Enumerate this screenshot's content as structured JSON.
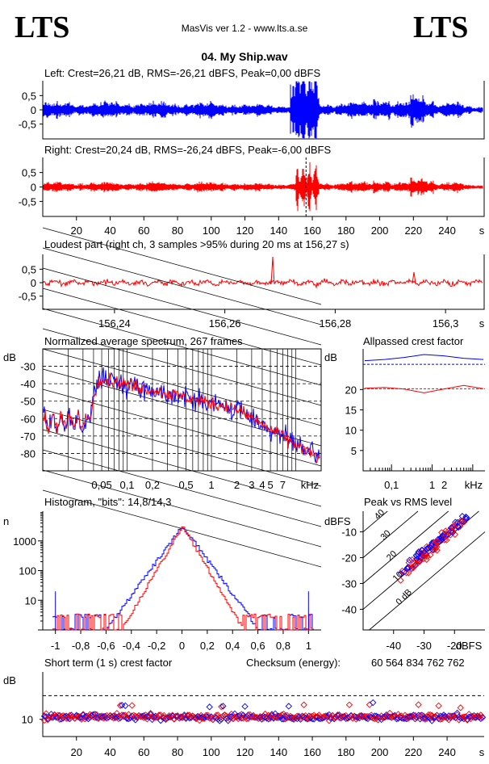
{
  "header": {
    "logo_left": "LTS",
    "logo_right": "LTS",
    "app_title": "MasVis ver 1.2 - www.lts.a.se",
    "file_name": "04. My Ship.wav"
  },
  "colors": {
    "left_channel": "#0000ff",
    "right_channel": "#ff0000",
    "axis": "#000000",
    "grid": "#000000"
  },
  "chart_data": [
    {
      "id": "left",
      "type": "line",
      "title": "Left: Crest=26,21 dB, RMS=-26,21 dBFS, Peak=0,00 dBFS",
      "y_tick_labels": [
        "0,5",
        "0",
        "-0,5"
      ],
      "x_range": [
        0,
        262
      ],
      "ylim": [
        -1,
        1
      ],
      "stats": {
        "crest_db": 26.21,
        "rms_dbfs": -26.21,
        "peak_dbfs": 0.0
      }
    },
    {
      "id": "right",
      "type": "line",
      "title": "Right: Crest=20,24 dB, RMS=-26,24 dBFS, Peak=-6,00 dBFS",
      "y_tick_labels": [
        "0,5",
        "0",
        "-0,5"
      ],
      "x_tick_labels": [
        "20",
        "40",
        "60",
        "80",
        "100",
        "120",
        "140",
        "160",
        "180",
        "200",
        "220",
        "240",
        "s"
      ],
      "x_ticks": [
        20,
        40,
        60,
        80,
        100,
        120,
        140,
        160,
        180,
        200,
        220,
        240
      ],
      "x_range": [
        0,
        262
      ],
      "ylim": [
        -1,
        1
      ],
      "marker_x": 156.27,
      "stats": {
        "crest_db": 20.24,
        "rms_dbfs": -26.24,
        "peak_dbfs": -6.0
      }
    },
    {
      "id": "loudest",
      "type": "line",
      "title": "Loudest part (right ch, 3 samples >95% during 20 ms at 156,27 s)",
      "y_tick_labels": [
        "0,5",
        "0",
        "-0,5"
      ],
      "x_tick_labels": [
        "156,24",
        "156,26",
        "156,28",
        "156,3",
        "s"
      ],
      "x_ticks": [
        156.24,
        156.26,
        156.28,
        156.3
      ],
      "x_range": [
        156.227,
        156.307
      ],
      "ylim": [
        -1,
        1
      ]
    },
    {
      "id": "spectrum",
      "type": "line",
      "title": "Normalized average spectrum, 267 frames",
      "ylabel": "dB",
      "y_tick_labels": [
        "-30",
        "-40",
        "-50",
        "-60",
        "-70",
        "-80"
      ],
      "y_ticks": [
        -30,
        -40,
        -50,
        -60,
        -70,
        -80
      ],
      "x_tick_labels": [
        "0,05",
        "0,1",
        "0,2",
        "0,5",
        "1",
        "2",
        "3",
        "4",
        "5",
        "7",
        "kHz"
      ],
      "x_ticks": [
        0.05,
        0.1,
        0.2,
        0.5,
        1,
        2,
        3,
        4,
        5,
        7
      ],
      "xlim_khz": [
        0.01,
        20
      ],
      "ylim": [
        -90,
        -20
      ],
      "x_scale": "log",
      "series": [
        {
          "channel": "left"
        },
        {
          "channel": "right"
        }
      ]
    },
    {
      "id": "allpassed",
      "type": "line",
      "title": "Allpassed crest factor",
      "ylabel": "dB",
      "y_tick_labels": [
        "20",
        "15",
        "10",
        "5"
      ],
      "y_ticks": [
        20,
        15,
        10,
        5
      ],
      "x_tick_labels": [
        "0,1",
        "1",
        "2",
        "kHz"
      ],
      "x_ticks": [
        0.1,
        1,
        2
      ],
      "x_scale": "log",
      "xlim_khz": [
        0.02,
        20
      ],
      "ylim": [
        0,
        30
      ],
      "series": [
        {
          "channel": "left",
          "reference": 26.2,
          "values": [
            27.1,
            27.4,
            27.9,
            28.6,
            28.3,
            27.7,
            27.4
          ]
        },
        {
          "channel": "right",
          "reference": 20.2,
          "values": [
            20.3,
            20.5,
            20.1,
            19.2,
            20.1,
            21.0,
            20.2
          ]
        }
      ]
    },
    {
      "id": "histogram",
      "type": "line",
      "title": "Histogram, \"bits\": 14,8/14,3",
      "ylabel": "n",
      "y_tick_labels": [
        "1000",
        "100",
        "10"
      ],
      "y_ticks": [
        1000,
        100,
        10
      ],
      "y_scale": "log",
      "ylim": [
        1,
        10000
      ],
      "x_tick_labels": [
        "-1",
        "-0,8",
        "-0,6",
        "-0,4",
        "-0,2",
        "0",
        "0,2",
        "0,4",
        "0,6",
        "0,8",
        "1"
      ],
      "x_ticks": [
        -1,
        -0.8,
        -0.6,
        -0.4,
        -0.2,
        0,
        0.2,
        0.4,
        0.6,
        0.8,
        1
      ],
      "xlim": [
        -1.1,
        1.1
      ],
      "bits": {
        "left": 14.8,
        "right": 14.3
      }
    },
    {
      "id": "peak_vs_rms",
      "type": "scatter",
      "title": "Peak vs RMS level",
      "ylabel": "dBFS",
      "xlabel": "dBFS",
      "y_tick_labels": [
        "-10",
        "-20",
        "-30",
        "-40"
      ],
      "y_ticks": [
        -10,
        -20,
        -30,
        -40
      ],
      "x_tick_labels": [
        "-40",
        "-30",
        "-20"
      ],
      "x_ticks": [
        -40,
        -30,
        -20
      ],
      "xlim": [
        -50,
        -10
      ],
      "ylim": [
        -48,
        -2
      ],
      "crest_lines": [
        {
          "label": "40",
          "crest": 40
        },
        {
          "label": "30",
          "crest": 30
        },
        {
          "label": "20",
          "crest": 20
        },
        {
          "label": "10",
          "crest": 10
        },
        {
          "label": "0 dB",
          "crest": 0
        }
      ]
    },
    {
      "id": "short_term_crest",
      "type": "scatter",
      "title": "Short term (1 s) crest factor",
      "checksum_label": "Checksum (energy):",
      "checksum_value": "60 564 834 762 762",
      "ylabel": "dB",
      "y_tick_labels": [
        "10"
      ],
      "y_ticks": [
        10
      ],
      "ylim": [
        0,
        30
      ],
      "dashed_reference": 20,
      "x_tick_labels": [
        "20",
        "40",
        "60",
        "80",
        "100",
        "120",
        "140",
        "160",
        "180",
        "200",
        "220",
        "240",
        "s"
      ],
      "x_ticks": [
        20,
        40,
        60,
        80,
        100,
        120,
        140,
        160,
        180,
        200,
        220,
        240
      ],
      "x_range": [
        0,
        262
      ]
    }
  ]
}
